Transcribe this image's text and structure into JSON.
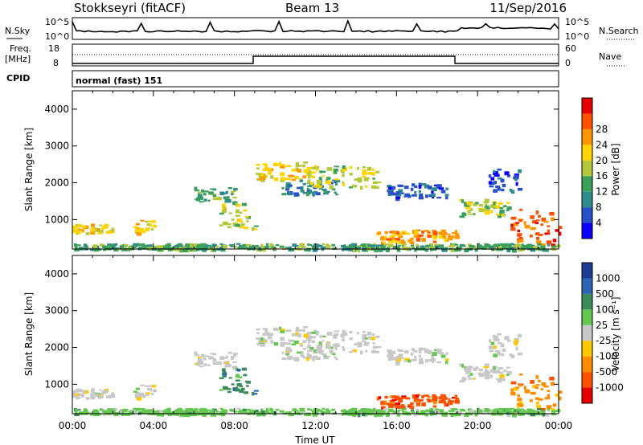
{
  "header": {
    "station": "Stokkseyri (fitACF)",
    "beam": "Beam 13",
    "date": "11/Sep/2016"
  },
  "strip1": {
    "left_label": "N.Sky",
    "right_label": "N.Search",
    "tick_top": "10^5",
    "tick_bottom": "10^0"
  },
  "strip2": {
    "left_label_1": "Freq.",
    "left_label_2": "[MHz]",
    "right_label": "Nave",
    "left_tick_top": "18",
    "left_tick_bottom": "8",
    "right_tick_top": "60",
    "right_tick_bottom": "0"
  },
  "cpid": {
    "label": "CPID",
    "value": "normal (fast) 151"
  },
  "chart_data": [
    {
      "type": "heatmap",
      "title": "",
      "ylabel": "Slant Range [km]",
      "xlabel": "",
      "ylim": [
        200,
        4500
      ],
      "xlim": [
        0,
        24
      ],
      "y_ticks": [
        "1000",
        "2000",
        "3000",
        "4000"
      ],
      "colorbar": {
        "label": "Power [dB]",
        "ticks": [
          "4",
          "8",
          "12",
          "16",
          "20",
          "24",
          "28"
        ],
        "colors": [
          "#0a00ff",
          "#2850c8",
          "#2e8b8b",
          "#3ca05a",
          "#b4c83c",
          "#ffd400",
          "#ff9600",
          "#ff5000",
          "#e60000"
        ]
      }
    },
    {
      "type": "heatmap",
      "title": "",
      "ylabel": "Slant Range [km]",
      "xlabel": "Time UT",
      "ylim": [
        200,
        4500
      ],
      "xlim": [
        0,
        24
      ],
      "y_ticks": [
        "1000",
        "2000",
        "3000",
        "4000"
      ],
      "x_ticks": [
        "00:00",
        "04:00",
        "08:00",
        "12:00",
        "16:00",
        "20:00",
        "00:00"
      ],
      "colorbar": {
        "label": "Velocity [m s⁻¹]",
        "ticks": [
          "1000",
          "500",
          "100",
          "25",
          "-25",
          "-100",
          "-500",
          "-1000"
        ],
        "colors": [
          "#1e3c96",
          "#2e64b4",
          "#3c8c5a",
          "#64c850",
          "#c8c8c8",
          "#ffc800",
          "#ff8c00",
          "#ff5000",
          "#e60000"
        ]
      }
    }
  ]
}
